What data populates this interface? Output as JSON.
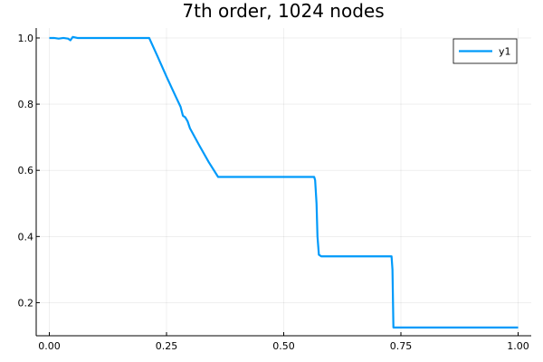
{
  "chart_data": {
    "type": "line",
    "title": "7th order, 1024 nodes",
    "xlabel": "",
    "ylabel": "",
    "xlim": [
      -0.028,
      1.028
    ],
    "ylim": [
      0.1,
      1.03
    ],
    "xticks": [
      0.0,
      0.25,
      0.5,
      0.75,
      1.0
    ],
    "xtick_labels": [
      "0.00",
      "0.25",
      "0.50",
      "0.75",
      "1.00"
    ],
    "yticks": [
      0.2,
      0.4,
      0.6,
      0.8,
      1.0
    ],
    "ytick_labels": [
      "0.2",
      "0.4",
      "0.6",
      "0.8",
      "1.0"
    ],
    "grid": true,
    "legend_position": "top-right",
    "series": [
      {
        "name": "y1",
        "color": "#009AFA",
        "x": [
          0.0,
          0.01,
          0.02,
          0.03,
          0.04,
          0.045,
          0.05,
          0.06,
          0.1,
          0.15,
          0.2,
          0.213,
          0.23,
          0.25,
          0.27,
          0.28,
          0.285,
          0.29,
          0.295,
          0.3,
          0.32,
          0.34,
          0.36,
          0.362,
          0.4,
          0.45,
          0.5,
          0.55,
          0.565,
          0.567,
          0.57,
          0.572,
          0.575,
          0.58,
          0.6,
          0.65,
          0.7,
          0.72,
          0.73,
          0.732,
          0.734,
          0.75,
          0.8,
          0.9,
          1.0
        ],
        "values": [
          1.0,
          1.0,
          0.998,
          1.0,
          0.998,
          0.993,
          1.003,
          1.0,
          1.0,
          1.0,
          1.0,
          1.0,
          0.947,
          0.883,
          0.822,
          0.792,
          0.765,
          0.76,
          0.748,
          0.727,
          0.675,
          0.625,
          0.58,
          0.58,
          0.58,
          0.58,
          0.58,
          0.58,
          0.58,
          0.57,
          0.5,
          0.4,
          0.345,
          0.34,
          0.34,
          0.34,
          0.34,
          0.34,
          0.34,
          0.3,
          0.125,
          0.125,
          0.125,
          0.125,
          0.125
        ]
      }
    ]
  }
}
